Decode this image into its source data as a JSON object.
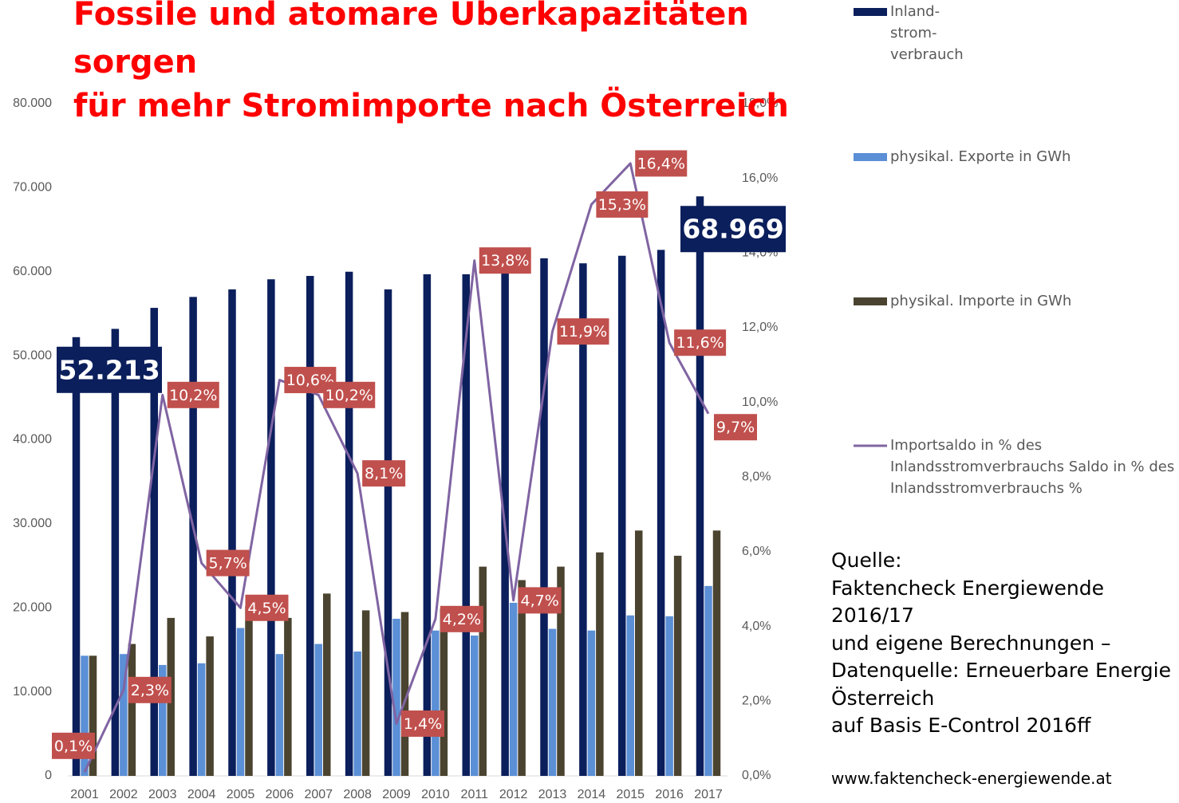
{
  "chart_data": {
    "type": "bar",
    "title": [
      "Fossile und atomare Überkapazitäten",
      "sorgen",
      "für mehr Stromimporte nach Österreich"
    ],
    "categories": [
      "2001",
      "2002",
      "2003",
      "2004",
      "2005",
      "2006",
      "2007",
      "2008",
      "2009",
      "2010",
      "2011",
      "2012",
      "2013",
      "2014",
      "2015",
      "2016",
      "2017"
    ],
    "series": [
      {
        "name": "Inland- strom- verbrauch",
        "color": "#0b1f5c",
        "values": [
          52213,
          53200,
          55700,
          57000,
          57900,
          59100,
          59500,
          60000,
          57900,
          59700,
          59700,
          60400,
          61600,
          61000,
          61900,
          62600,
          68969
        ],
        "value_labels": [
          "52.213",
          null,
          null,
          null,
          null,
          null,
          null,
          null,
          null,
          null,
          null,
          null,
          null,
          null,
          null,
          null,
          "68.969"
        ]
      },
      {
        "name": "physikal. Exporte in GWh",
        "color": "#5b8fd6",
        "values": [
          14300,
          14500,
          13200,
          13400,
          17600,
          14500,
          15700,
          14800,
          18700,
          17300,
          16700,
          20600,
          17500,
          17300,
          19100,
          19000,
          22600
        ]
      },
      {
        "name": "physikal. Importe in GWh",
        "color": "#4a4330",
        "values": [
          14300,
          15700,
          18800,
          16600,
          20200,
          18800,
          21700,
          19700,
          19500,
          19900,
          24900,
          23300,
          24900,
          26600,
          29200,
          26200,
          29200
        ]
      },
      {
        "name": "Importsaldo in % des Inlandsstromverbrauchs Saldo in % des Inlandsstromverbrauchs %",
        "color": "#8064a2",
        "type": "line",
        "axis": "y2",
        "values": [
          0.1,
          2.3,
          10.2,
          5.7,
          4.5,
          10.6,
          10.2,
          8.1,
          1.4,
          4.2,
          13.8,
          4.7,
          11.9,
          15.3,
          16.4,
          11.6,
          9.7
        ],
        "value_labels": [
          "0,1%",
          "2,3%",
          "10,2%",
          "5,7%",
          "4,5%",
          "10,6%",
          "10,2%",
          "8,1%",
          "1,4%",
          "4,2%",
          "13,8%",
          "4,7%",
          "11,9%",
          "15,3%",
          "16,4%",
          "11,6%",
          "9,7%"
        ]
      }
    ],
    "ylim": [
      0,
      80000
    ],
    "yticks": [
      0,
      {
        "value": 10000,
        "label": "10.000"
      },
      {
        "value": 20000,
        "label": "20.000"
      },
      {
        "value": 30000,
        "label": "30.000"
      },
      {
        "value": 40000,
        "label": "40.000"
      },
      {
        "value": 50000,
        "label": "50.000"
      },
      {
        "value": 60000,
        "label": "60.000"
      },
      {
        "value": 70000,
        "label": "70.000"
      },
      {
        "value": 80000,
        "label": "80.000"
      }
    ],
    "y2lim": [
      0,
      18
    ],
    "y2ticks": [
      {
        "value": 0,
        "label": "0,0%"
      },
      {
        "value": 2,
        "label": "2,0%"
      },
      {
        "value": 4,
        "label": "4,0%"
      },
      {
        "value": 6,
        "label": "6,0%"
      },
      {
        "value": 8,
        "label": "8,0%"
      },
      {
        "value": 10,
        "label": "10,0%"
      },
      {
        "value": 12,
        "label": "12,0%"
      },
      {
        "value": 14,
        "label": "14,0%"
      },
      {
        "value": 16,
        "label": "16,0%"
      },
      {
        "value": 18,
        "label": "18,0%"
      }
    ],
    "grid": false,
    "legend": "right",
    "source": [
      "Quelle:",
      "Faktencheck Energiewende",
      "2016/17",
      "und eigene Berechnungen –",
      "Datenquelle: Erneuerbare Energie",
      "Österreich",
      "auf Basis E-Control 2016ff"
    ],
    "url": "www.faktencheck-energiewende.at"
  }
}
